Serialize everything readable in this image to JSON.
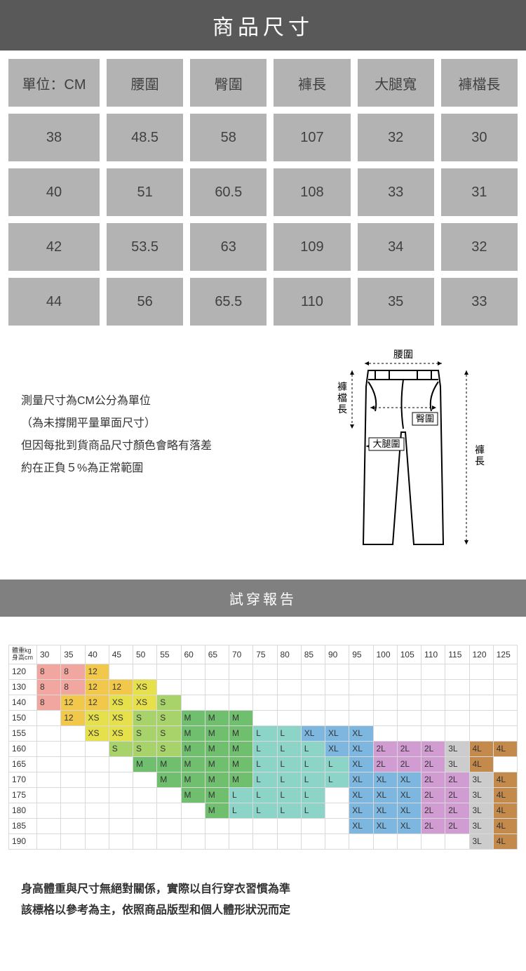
{
  "title": "商品尺寸",
  "size_table": {
    "headers": [
      "單位：CM",
      "腰圍",
      "臀圍",
      "褲長",
      "大腿寬",
      "褲檔長"
    ],
    "rows": [
      [
        "38",
        "48.5",
        "58",
        "107",
        "32",
        "30"
      ],
      [
        "40",
        "51",
        "60.5",
        "108",
        "33",
        "31"
      ],
      [
        "42",
        "53.5",
        "63",
        "109",
        "34",
        "32"
      ],
      [
        "44",
        "56",
        "65.5",
        "110",
        "35",
        "33"
      ]
    ],
    "cell_bg": "#b3b3b3",
    "cell_fg": "#404040"
  },
  "info_lines": [
    "測量尺寸為CM公分為單位",
    "（為未撐開平量單面尺寸）",
    "但因每批到貨商品尺寸顏色會略有落差",
    "約在正負５%為正常範圍"
  ],
  "diagram_labels": {
    "waist": "腰圍",
    "rise": "褲檔長",
    "hip": "臀圍",
    "thigh": "大腿圍",
    "length": "褲長"
  },
  "sub_title": "試穿報告",
  "fit_chart": {
    "corner_top": "體重kg",
    "corner_bottom": "身高cm",
    "weights": [
      "30",
      "35",
      "40",
      "45",
      "50",
      "55",
      "60",
      "65",
      "70",
      "75",
      "80",
      "85",
      "90",
      "95",
      "100",
      "105",
      "110",
      "115",
      "120",
      "125"
    ],
    "heights": [
      "120",
      "130",
      "140",
      "150",
      "155",
      "160",
      "165",
      "170",
      "175",
      "180",
      "185",
      "190"
    ],
    "palette": {
      "8": "#f2a6a0",
      "12": "#f2c84b",
      "XS": "#e6e04b",
      "S": "#a8d36a",
      "M": "#6fbf6f",
      "L": "#8bd4c7",
      "XL": "#7db7e0",
      "2L": "#d19cd1",
      "3L": "#cccccc",
      "4L": "#c48a4b",
      "": "#ffffff"
    },
    "grid": [
      [
        "8",
        "8",
        "12",
        "",
        "",
        "",
        "",
        "",
        "",
        "",
        "",
        "",
        "",
        "",
        "",
        "",
        "",
        "",
        "",
        ""
      ],
      [
        "8",
        "8",
        "12",
        "12",
        "XS",
        "",
        "",
        "",
        "",
        "",
        "",
        "",
        "",
        "",
        "",
        "",
        "",
        "",
        "",
        ""
      ],
      [
        "8",
        "12",
        "12",
        "XS",
        "XS",
        "S",
        "",
        "",
        "",
        "",
        "",
        "",
        "",
        "",
        "",
        "",
        "",
        "",
        "",
        ""
      ],
      [
        "",
        "12",
        "XS",
        "XS",
        "S",
        "S",
        "M",
        "M",
        "M",
        "",
        "",
        "",
        "",
        "",
        "",
        "",
        "",
        "",
        "",
        ""
      ],
      [
        "",
        "",
        "XS",
        "XS",
        "S",
        "S",
        "M",
        "M",
        "M",
        "L",
        "L",
        "XL",
        "XL",
        "XL",
        "",
        "",
        "",
        "",
        "",
        ""
      ],
      [
        "",
        "",
        "",
        "S",
        "S",
        "S",
        "M",
        "M",
        "M",
        "L",
        "L",
        "L",
        "XL",
        "XL",
        "2L",
        "2L",
        "2L",
        "3L",
        "4L",
        "4L"
      ],
      [
        "",
        "",
        "",
        "",
        "M",
        "M",
        "M",
        "M",
        "M",
        "L",
        "L",
        "L",
        "L",
        "XL",
        "2L",
        "2L",
        "2L",
        "3L",
        "4L",
        ""
      ],
      [
        "",
        "",
        "",
        "",
        "",
        "M",
        "M",
        "M",
        "M",
        "L",
        "L",
        "L",
        "L",
        "XL",
        "XL",
        "XL",
        "2L",
        "2L",
        "3L",
        "4L"
      ],
      [
        "",
        "",
        "",
        "",
        "",
        "",
        "M",
        "M",
        "L",
        "L",
        "L",
        "L",
        "",
        "XL",
        "XL",
        "XL",
        "2L",
        "2L",
        "3L",
        "4L"
      ],
      [
        "",
        "",
        "",
        "",
        "",
        "",
        "",
        "M",
        "L",
        "L",
        "L",
        "L",
        "",
        "XL",
        "XL",
        "XL",
        "2L",
        "2L",
        "3L",
        "4L"
      ],
      [
        "",
        "",
        "",
        "",
        "",
        "",
        "",
        "",
        "",
        "",
        "",
        "",
        "",
        "XL",
        "XL",
        "XL",
        "2L",
        "2L",
        "3L",
        "4L"
      ],
      [
        "",
        "",
        "",
        "",
        "",
        "",
        "",
        "",
        "",
        "",
        "",
        "",
        "",
        "",
        "",
        "",
        "",
        "",
        "3L",
        "4L"
      ]
    ]
  },
  "foot_notes": [
    "身高體重與尺寸無絕對關係，實際以自行穿衣習慣為準",
    "該標格以參考為主，依照商品版型和個人體形狀況而定"
  ]
}
